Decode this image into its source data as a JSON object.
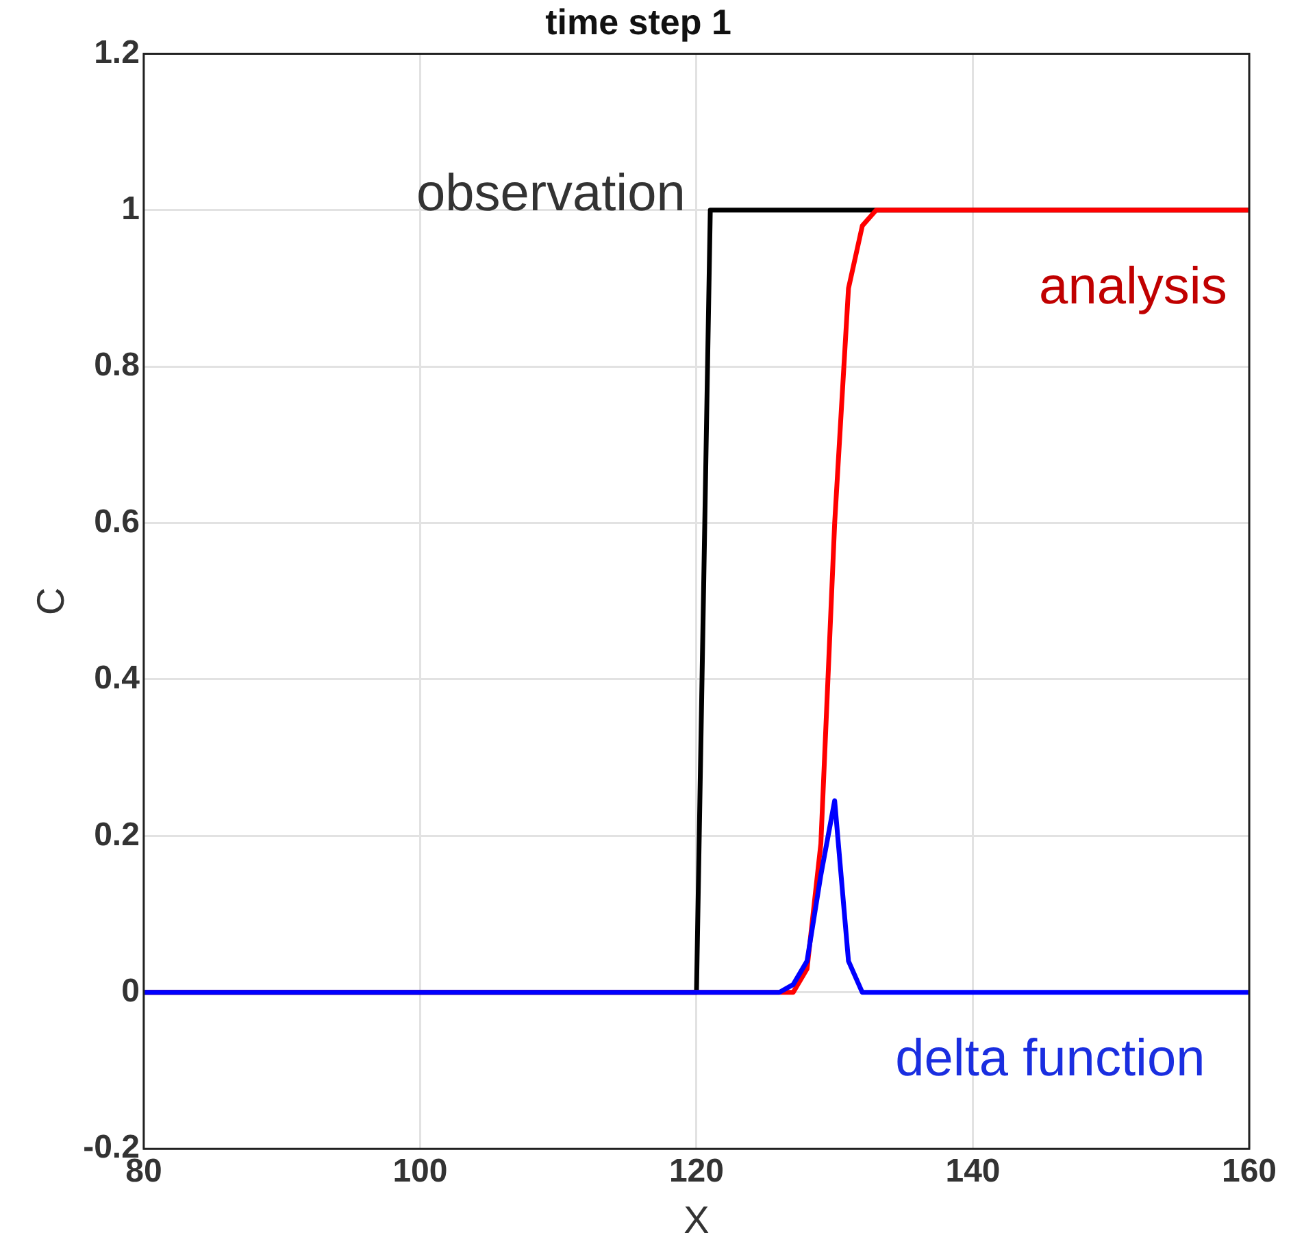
{
  "chart_data": {
    "type": "line",
    "title": "time step 1",
    "xlabel": "X",
    "ylabel": "C",
    "xlim": [
      80,
      160
    ],
    "xticks": [
      80,
      100,
      120,
      140,
      160
    ],
    "ylim": [
      -0.2,
      1.2
    ],
    "yticks": [
      -0.2,
      0,
      0.2,
      0.4,
      0.6,
      0.8,
      1,
      1.2
    ],
    "grid": true,
    "legend": false,
    "marker": "none",
    "line_style": "solid",
    "series": [
      {
        "name": "observation",
        "color": "#000000",
        "x": [
          80,
          120,
          121,
          160
        ],
        "values": [
          0,
          0,
          1,
          1
        ]
      },
      {
        "name": "analysis",
        "color": "#ff0000",
        "x": [
          80,
          127,
          128,
          129,
          130,
          131,
          132,
          133,
          160
        ],
        "values": [
          0,
          0,
          0.03,
          0.19,
          0.6,
          0.9,
          0.98,
          1,
          1
        ]
      },
      {
        "name": "delta function",
        "color": "#0000ff",
        "x": [
          80,
          126,
          127,
          128,
          129,
          130,
          131,
          132,
          160
        ],
        "values": [
          0,
          0,
          0.01,
          0.04,
          0.15,
          0.245,
          0.04,
          0,
          0
        ]
      }
    ]
  }
}
